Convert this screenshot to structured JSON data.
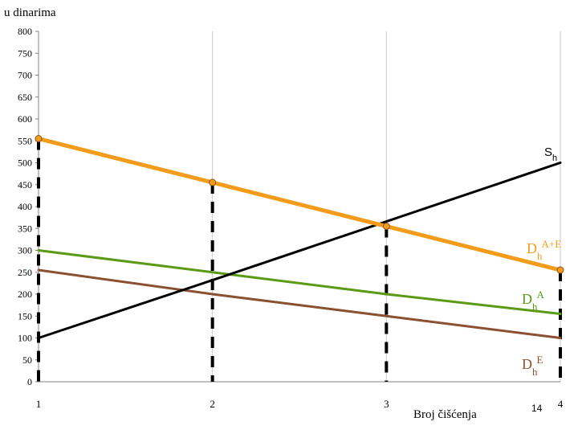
{
  "chart_data": {
    "type": "line",
    "ylabel": "u dinarima",
    "xlabel": "Broj čišćenja",
    "x": [
      1,
      2,
      3,
      4
    ],
    "xlim": [
      1,
      4
    ],
    "ylim": [
      0,
      800
    ],
    "y_ticks": [
      "0",
      "50",
      "100",
      "150",
      "200",
      "250",
      "300",
      "350",
      "400",
      "450",
      "500",
      "550",
      "600",
      "650",
      "700",
      "750",
      "800"
    ],
    "x_ticks": [
      "1",
      "2",
      "3",
      "4"
    ],
    "grid": "vertical",
    "series": [
      {
        "name_main": "D",
        "name_sub": "h",
        "name_sup": "A+E",
        "color": "#f39c1b",
        "values": [
          555,
          455,
          355,
          255
        ],
        "markers": true
      },
      {
        "name_main": "D",
        "name_sub": "h",
        "name_sup": "A",
        "color": "#5a9a14",
        "values": [
          300,
          250,
          200,
          155
        ],
        "markers": false
      },
      {
        "name_main": "D",
        "name_sub": "h",
        "name_sup": "E",
        "color": "#8a5030",
        "values": [
          255,
          200,
          150,
          100
        ],
        "markers": false
      },
      {
        "name_main": "S",
        "name_sub": "h",
        "name_sup": "",
        "color": "#000000",
        "values": [
          100,
          232,
          366,
          500
        ],
        "markers": false
      }
    ],
    "annotation": "14"
  }
}
